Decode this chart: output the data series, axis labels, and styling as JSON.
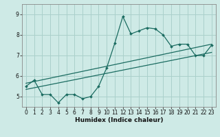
{
  "xlabel": "Humidex (Indice chaleur)",
  "bg_color": "#ceeae6",
  "grid_color": "#aad0cb",
  "line_color": "#1a6b60",
  "xlim": [
    -0.5,
    23.5
  ],
  "ylim": [
    4.5,
    9.5
  ],
  "yticks": [
    5,
    6,
    7,
    8,
    9
  ],
  "xticks": [
    0,
    1,
    2,
    3,
    4,
    5,
    6,
    7,
    8,
    9,
    10,
    11,
    12,
    13,
    14,
    15,
    16,
    17,
    18,
    19,
    20,
    21,
    22,
    23
  ],
  "curve_x": [
    0,
    1,
    2,
    3,
    4,
    5,
    6,
    7,
    8,
    9,
    10,
    11,
    12,
    13,
    14,
    15,
    16,
    17,
    18,
    19,
    20,
    21,
    22,
    23
  ],
  "curve_y": [
    5.5,
    5.8,
    5.1,
    5.1,
    4.7,
    5.1,
    5.1,
    4.9,
    5.0,
    5.5,
    6.4,
    7.6,
    8.9,
    8.05,
    8.2,
    8.35,
    8.3,
    8.0,
    7.45,
    7.55,
    7.55,
    7.0,
    7.0,
    7.5
  ],
  "line1_x": [
    0,
    23
  ],
  "line1_y": [
    5.65,
    7.55
  ],
  "line2_x": [
    0,
    23
  ],
  "line2_y": [
    5.35,
    7.15
  ],
  "tick_fontsize": 5.5,
  "xlabel_fontsize": 6.5,
  "marker_size": 2.0
}
